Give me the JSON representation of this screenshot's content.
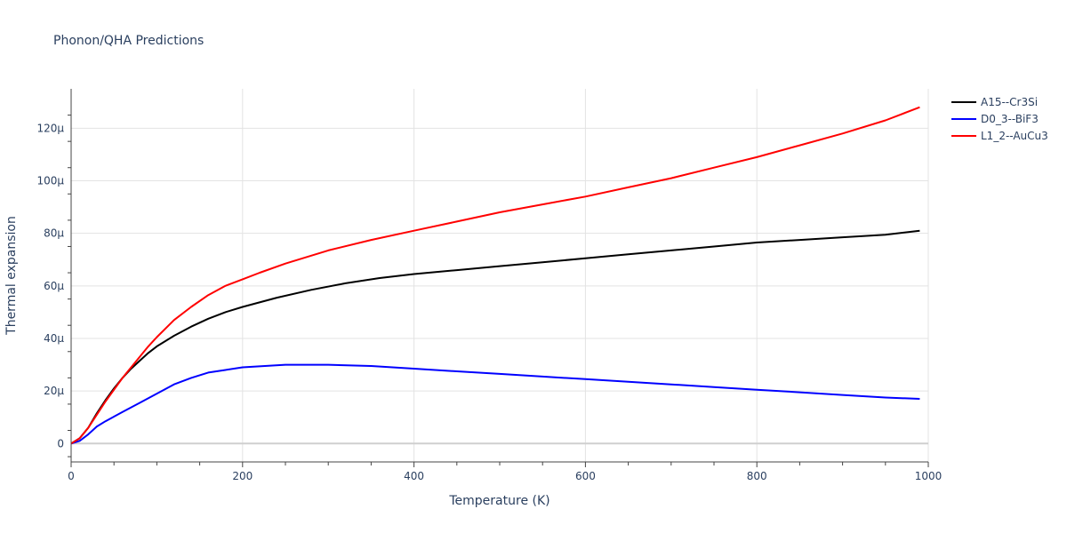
{
  "chart_data": {
    "type": "line",
    "title": "Phonon/QHA Predictions",
    "xlabel": "Temperature (K)",
    "ylabel": "Thermal expansion",
    "xlim": [
      0,
      1000
    ],
    "ylim": [
      -7,
      135
    ],
    "x_ticks": [
      0,
      200,
      400,
      600,
      800,
      1000
    ],
    "x_tick_labels": [
      "0",
      "200",
      "400",
      "600",
      "800",
      "1000"
    ],
    "y_ticks": [
      0,
      20,
      40,
      60,
      80,
      100,
      120
    ],
    "y_tick_labels": [
      "0",
      "20μ",
      "40μ",
      "60μ",
      "80μ",
      "100μ",
      "120μ"
    ],
    "grid": true,
    "legend_position": "top-right",
    "series": [
      {
        "name": "A15--Cr3Si",
        "color": "#000000",
        "x": [
          0,
          10,
          20,
          30,
          40,
          50,
          60,
          70,
          80,
          90,
          100,
          120,
          140,
          160,
          180,
          200,
          240,
          280,
          320,
          360,
          400,
          450,
          500,
          550,
          600,
          650,
          700,
          750,
          800,
          850,
          900,
          950,
          990
        ],
        "y": [
          0,
          2,
          6,
          11.5,
          16.5,
          21,
          25,
          28.5,
          31.5,
          34.5,
          37,
          41,
          44.5,
          47.5,
          50,
          52,
          55.5,
          58.5,
          61,
          63,
          64.5,
          66,
          67.5,
          69,
          70.5,
          72,
          73.5,
          75,
          76.5,
          77.5,
          78.5,
          79.5,
          81
        ]
      },
      {
        "name": "D0_3--BiF3",
        "color": "#0000ff",
        "x": [
          0,
          10,
          20,
          30,
          40,
          60,
          80,
          100,
          120,
          140,
          160,
          180,
          200,
          250,
          300,
          350,
          400,
          450,
          500,
          550,
          600,
          650,
          700,
          750,
          800,
          850,
          900,
          950,
          990
        ],
        "y": [
          0,
          1,
          3.5,
          6.5,
          8.5,
          12,
          15.5,
          19,
          22.5,
          25,
          27,
          28,
          29,
          30,
          30,
          29.5,
          28.5,
          27.5,
          26.5,
          25.5,
          24.5,
          23.5,
          22.5,
          21.5,
          20.5,
          19.5,
          18.5,
          17.5,
          17
        ]
      },
      {
        "name": "L1_2--AuCu3",
        "color": "#ff0000",
        "x": [
          0,
          10,
          20,
          30,
          40,
          50,
          60,
          70,
          80,
          90,
          100,
          120,
          140,
          160,
          180,
          200,
          220,
          250,
          300,
          350,
          400,
          450,
          500,
          550,
          600,
          650,
          700,
          750,
          800,
          850,
          900,
          950,
          990
        ],
        "y": [
          0,
          2,
          6,
          11,
          16,
          20.5,
          25,
          29,
          33,
          37,
          40.5,
          47,
          52,
          56.5,
          60,
          62.5,
          65,
          68.5,
          73.5,
          77.5,
          81,
          84.5,
          88,
          91,
          94,
          97.5,
          101,
          105,
          109,
          113.5,
          118,
          123,
          128
        ]
      }
    ]
  }
}
